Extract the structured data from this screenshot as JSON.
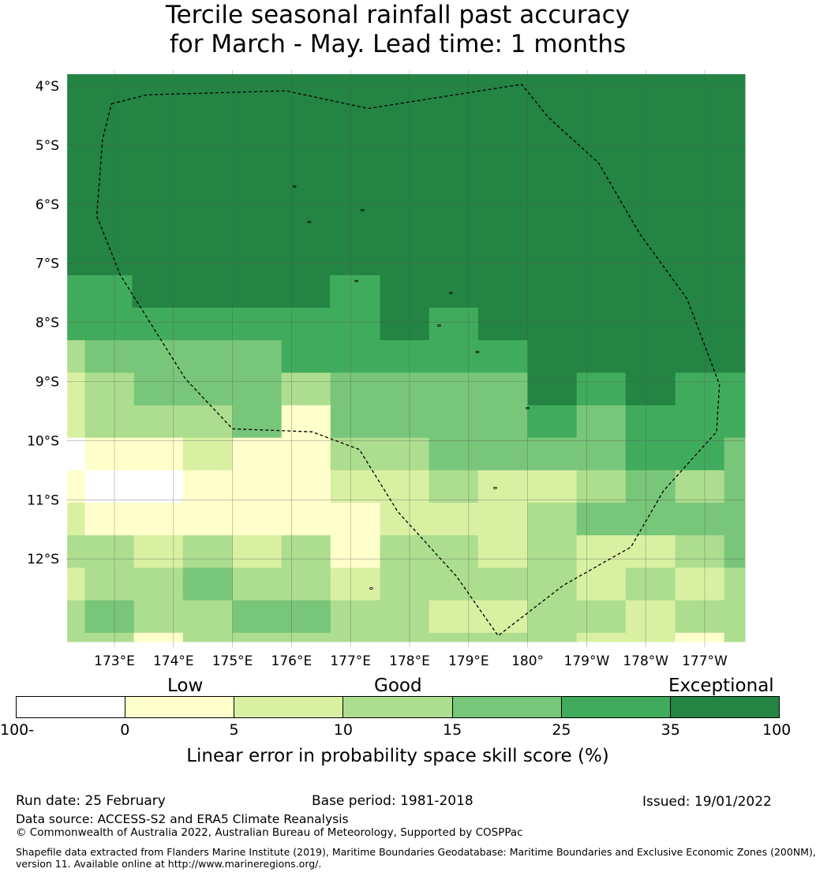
{
  "title": {
    "line1": "Tercile seasonal rainfall past accuracy",
    "line2": "for March - May. Lead time: 1 months"
  },
  "chart_data": {
    "type": "heatmap",
    "x_label_values": [
      173,
      174,
      175,
      176,
      177,
      178,
      179,
      180,
      181,
      182,
      183
    ],
    "x_tick_labels": [
      "173°E",
      "174°E",
      "175°E",
      "176°E",
      "177°E",
      "178°E",
      "179°E",
      "180°",
      "179°W",
      "178°W",
      "177°W"
    ],
    "y_label_values": [
      -4,
      -5,
      -6,
      -7,
      -8,
      -9,
      -10,
      -11,
      -12
    ],
    "y_tick_labels": [
      "4°S",
      "5°S",
      "6°S",
      "7°S",
      "8°S",
      "9°S",
      "10°S",
      "11°S",
      "12°S"
    ],
    "lon_range": [
      172.2,
      183.7
    ],
    "lat_range": [
      -13.4,
      -3.8
    ],
    "grid_rows_cover_lat": [
      -13.4,
      -3.8
    ],
    "grid_bands": [
      {
        "lat_from": -3.8,
        "lat_to": -7.2,
        "cols": [
          {
            "from": 172.2,
            "to": 183.7,
            "bin": 6
          }
        ]
      },
      {
        "lat_from": -7.2,
        "lat_to": -7.75,
        "cols": [
          {
            "from": 172.2,
            "to": 173.3,
            "bin": 5
          },
          {
            "from": 173.3,
            "to": 176.65,
            "bin": 6
          },
          {
            "from": 176.65,
            "to": 177.5,
            "bin": 5
          },
          {
            "from": 177.5,
            "to": 183.7,
            "bin": 6
          }
        ]
      },
      {
        "lat_from": -7.75,
        "lat_to": -8.3,
        "cols": [
          {
            "from": 172.2,
            "to": 177.5,
            "bin": 5
          },
          {
            "from": 177.5,
            "to": 178.33,
            "bin": 6
          },
          {
            "from": 178.33,
            "to": 179.16,
            "bin": 5
          },
          {
            "from": 179.16,
            "to": 183.7,
            "bin": 6
          }
        ]
      },
      {
        "lat_from": -8.3,
        "lat_to": -8.85,
        "cols": [
          {
            "from": 172.2,
            "to": 172.5,
            "bin": 3
          },
          {
            "from": 172.5,
            "to": 175.83,
            "bin": 4
          },
          {
            "from": 175.83,
            "to": 180.0,
            "bin": 5
          },
          {
            "from": 180.0,
            "to": 183.7,
            "bin": 6
          }
        ]
      },
      {
        "lat_from": -8.85,
        "lat_to": -9.4,
        "cols": [
          {
            "from": 172.2,
            "to": 172.5,
            "bin": 2
          },
          {
            "from": 172.5,
            "to": 173.33,
            "bin": 3
          },
          {
            "from": 173.33,
            "to": 175.83,
            "bin": 4
          },
          {
            "from": 175.83,
            "to": 176.66,
            "bin": 3
          },
          {
            "from": 176.66,
            "to": 180.0,
            "bin": 4
          },
          {
            "from": 180.0,
            "to": 180.83,
            "bin": 6
          },
          {
            "from": 180.83,
            "to": 181.66,
            "bin": 5
          },
          {
            "from": 181.66,
            "to": 182.5,
            "bin": 6
          },
          {
            "from": 182.5,
            "to": 183.7,
            "bin": 5
          }
        ]
      },
      {
        "lat_from": -9.4,
        "lat_to": -9.95,
        "cols": [
          {
            "from": 172.2,
            "to": 172.5,
            "bin": 2
          },
          {
            "from": 172.5,
            "to": 175.0,
            "bin": 3
          },
          {
            "from": 175.0,
            "to": 175.83,
            "bin": 4
          },
          {
            "from": 175.83,
            "to": 176.66,
            "bin": 1
          },
          {
            "from": 176.66,
            "to": 180.0,
            "bin": 4
          },
          {
            "from": 180.0,
            "to": 180.83,
            "bin": 5
          },
          {
            "from": 180.83,
            "to": 181.66,
            "bin": 4
          },
          {
            "from": 181.66,
            "to": 183.7,
            "bin": 5
          }
        ]
      },
      {
        "lat_from": -9.95,
        "lat_to": -10.5,
        "cols": [
          {
            "from": 172.2,
            "to": 172.5,
            "bin": 0
          },
          {
            "from": 172.5,
            "to": 174.16,
            "bin": 1
          },
          {
            "from": 174.16,
            "to": 175.0,
            "bin": 2
          },
          {
            "from": 175.0,
            "to": 176.66,
            "bin": 1
          },
          {
            "from": 176.66,
            "to": 178.33,
            "bin": 3
          },
          {
            "from": 178.33,
            "to": 181.66,
            "bin": 4
          },
          {
            "from": 181.66,
            "to": 183.33,
            "bin": 5
          },
          {
            "from": 183.33,
            "to": 183.7,
            "bin": 4
          }
        ]
      },
      {
        "lat_from": -10.5,
        "lat_to": -11.05,
        "cols": [
          {
            "from": 172.2,
            "to": 172.5,
            "bin": 1
          },
          {
            "from": 172.5,
            "to": 174.16,
            "bin": 0
          },
          {
            "from": 174.16,
            "to": 176.66,
            "bin": 1
          },
          {
            "from": 176.66,
            "to": 178.33,
            "bin": 2
          },
          {
            "from": 178.33,
            "to": 179.16,
            "bin": 3
          },
          {
            "from": 179.16,
            "to": 180.83,
            "bin": 2
          },
          {
            "from": 180.83,
            "to": 181.66,
            "bin": 3
          },
          {
            "from": 181.66,
            "to": 182.5,
            "bin": 4
          },
          {
            "from": 182.5,
            "to": 183.33,
            "bin": 3
          },
          {
            "from": 183.33,
            "to": 183.7,
            "bin": 4
          }
        ]
      },
      {
        "lat_from": -11.05,
        "lat_to": -11.6,
        "cols": [
          {
            "from": 172.2,
            "to": 172.5,
            "bin": 2
          },
          {
            "from": 172.5,
            "to": 177.5,
            "bin": 1
          },
          {
            "from": 177.5,
            "to": 180.0,
            "bin": 2
          },
          {
            "from": 180.0,
            "to": 180.83,
            "bin": 3
          },
          {
            "from": 180.83,
            "to": 183.7,
            "bin": 4
          }
        ]
      },
      {
        "lat_from": -11.6,
        "lat_to": -12.15,
        "cols": [
          {
            "from": 172.2,
            "to": 173.33,
            "bin": 3
          },
          {
            "from": 173.33,
            "to": 174.16,
            "bin": 2
          },
          {
            "from": 174.16,
            "to": 175.0,
            "bin": 3
          },
          {
            "from": 175.0,
            "to": 175.83,
            "bin": 2
          },
          {
            "from": 175.83,
            "to": 176.66,
            "bin": 3
          },
          {
            "from": 176.66,
            "to": 177.5,
            "bin": 1
          },
          {
            "from": 177.5,
            "to": 179.16,
            "bin": 3
          },
          {
            "from": 179.16,
            "to": 180.0,
            "bin": 2
          },
          {
            "from": 180.0,
            "to": 180.83,
            "bin": 3
          },
          {
            "from": 180.83,
            "to": 182.5,
            "bin": 2
          },
          {
            "from": 182.5,
            "to": 183.33,
            "bin": 3
          },
          {
            "from": 183.33,
            "to": 183.7,
            "bin": 4
          }
        ]
      },
      {
        "lat_from": -12.15,
        "lat_to": -12.7,
        "cols": [
          {
            "from": 172.2,
            "to": 172.5,
            "bin": 2
          },
          {
            "from": 172.5,
            "to": 174.16,
            "bin": 3
          },
          {
            "from": 174.16,
            "to": 175.0,
            "bin": 4
          },
          {
            "from": 175.0,
            "to": 176.66,
            "bin": 3
          },
          {
            "from": 176.66,
            "to": 177.5,
            "bin": 2
          },
          {
            "from": 177.5,
            "to": 180.83,
            "bin": 3
          },
          {
            "from": 180.83,
            "to": 181.66,
            "bin": 2
          },
          {
            "from": 181.66,
            "to": 182.5,
            "bin": 3
          },
          {
            "from": 182.5,
            "to": 183.33,
            "bin": 2
          },
          {
            "from": 183.33,
            "to": 183.7,
            "bin": 3
          }
        ]
      },
      {
        "lat_from": -12.7,
        "lat_to": -13.25,
        "cols": [
          {
            "from": 172.2,
            "to": 172.5,
            "bin": 3
          },
          {
            "from": 172.5,
            "to": 173.33,
            "bin": 4
          },
          {
            "from": 173.33,
            "to": 175.0,
            "bin": 3
          },
          {
            "from": 175.0,
            "to": 176.66,
            "bin": 4
          },
          {
            "from": 176.66,
            "to": 178.33,
            "bin": 3
          },
          {
            "from": 178.33,
            "to": 180.0,
            "bin": 2
          },
          {
            "from": 180.0,
            "to": 181.66,
            "bin": 3
          },
          {
            "from": 181.66,
            "to": 182.5,
            "bin": 2
          },
          {
            "from": 182.5,
            "to": 183.7,
            "bin": 3
          }
        ]
      },
      {
        "lat_from": -13.25,
        "lat_to": -13.4,
        "cols": [
          {
            "from": 172.2,
            "to": 173.33,
            "bin": 3
          },
          {
            "from": 173.33,
            "to": 174.16,
            "bin": 1
          },
          {
            "from": 174.16,
            "to": 180.0,
            "bin": 3
          },
          {
            "from": 180.0,
            "to": 180.83,
            "bin": 3
          },
          {
            "from": 180.83,
            "to": 182.5,
            "bin": 2
          },
          {
            "from": 182.5,
            "to": 183.33,
            "bin": 1
          },
          {
            "from": 183.33,
            "to": 183.7,
            "bin": 3
          }
        ]
      }
    ],
    "eez_boundary": [
      [
        172.95,
        -4.3
      ],
      [
        173.55,
        -4.15
      ],
      [
        175.9,
        -4.08
      ],
      [
        177.3,
        -4.38
      ],
      [
        179.9,
        -3.97
      ],
      [
        180.35,
        -4.53
      ],
      [
        181.2,
        -5.3
      ],
      [
        181.9,
        -6.5
      ],
      [
        182.7,
        -7.6
      ],
      [
        183.25,
        -9.05
      ],
      [
        183.2,
        -9.85
      ],
      [
        182.3,
        -10.85
      ],
      [
        181.75,
        -11.8
      ],
      [
        180.6,
        -12.45
      ],
      [
        179.5,
        -13.3
      ],
      [
        178.8,
        -12.3
      ],
      [
        177.8,
        -11.2
      ],
      [
        177.15,
        -10.15
      ],
      [
        176.35,
        -9.85
      ],
      [
        175.0,
        -9.8
      ],
      [
        174.2,
        -8.95
      ],
      [
        173.1,
        -7.2
      ],
      [
        172.7,
        -6.2
      ],
      [
        172.8,
        -4.9
      ],
      [
        172.95,
        -4.3
      ]
    ],
    "colorbar": {
      "categories": [
        "Low",
        "Good",
        "Exceptional"
      ],
      "tick_labels": [
        "-100",
        "0",
        "5",
        "10",
        "15",
        "25",
        "35",
        "100"
      ],
      "colors": [
        "#ffffff",
        "#ffffcc",
        "#d9f0a3",
        "#addd8e",
        "#78c679",
        "#41ab5d",
        "#238443"
      ],
      "label": "Linear error in probability space skill score (%)"
    }
  },
  "footer": {
    "run_date": "Run date: 25 February",
    "base_period": "Base period: 1981-2018",
    "issued": "Issued: 19/01/2022",
    "data_source": "Data source: ACCESS-S2 and ERA5 Climate Reanalysis",
    "copyright": "© Commonwealth of Australia 2022, Australian Bureau of Meteorology, Supported by COSPPac",
    "shapefile_line1": "Shapefile data extracted from Flanders Marine Institute (2019), Maritime Boundaries Geodatabase: Maritime Boundaries and Exclusive Economic Zones (200NM),",
    "shapefile_line2": "version 11. Available online at http://www.marineregions.org/."
  }
}
